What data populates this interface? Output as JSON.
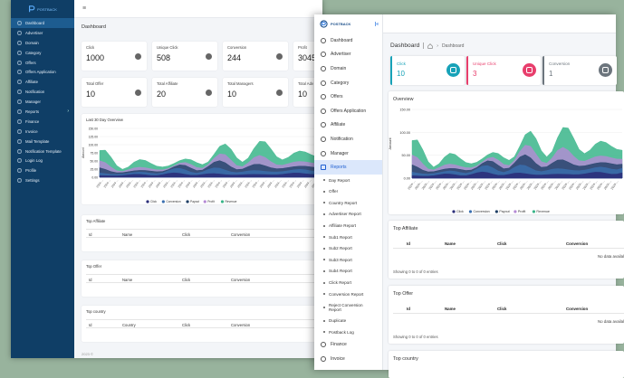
{
  "back": {
    "logo": "POSTBACK",
    "menu_icon": "≡",
    "page_title": "Dashboard",
    "sidebar": [
      {
        "label": "Dashboard",
        "icon": "home-icon",
        "active": true
      },
      {
        "label": "Advertiser",
        "icon": "user-icon"
      },
      {
        "label": "Domain",
        "icon": "globe-icon"
      },
      {
        "label": "Category",
        "icon": "folder-icon"
      },
      {
        "label": "Offers",
        "icon": "tag-icon"
      },
      {
        "label": "Offers Application",
        "icon": "doc-icon"
      },
      {
        "label": "Affiliate",
        "icon": "users-icon"
      },
      {
        "label": "Notification",
        "icon": "bell-icon"
      },
      {
        "label": "Manager",
        "icon": "user-icon"
      },
      {
        "label": "Reports",
        "icon": "chart-icon",
        "chevron": "›"
      },
      {
        "label": "Finance",
        "icon": "money-icon"
      },
      {
        "label": "Invoice",
        "icon": "doc-icon"
      },
      {
        "label": "Mail Template",
        "icon": "mail-icon"
      },
      {
        "label": "Notification Template",
        "icon": "bell-icon"
      },
      {
        "label": "Login Log",
        "icon": "log-icon"
      },
      {
        "label": "Profile",
        "icon": "user-icon"
      },
      {
        "label": "Settings",
        "icon": "gear-icon"
      }
    ],
    "stats": [
      {
        "label": "Click",
        "value": "1000",
        "icon": "hand-icon"
      },
      {
        "label": "Unique Click",
        "value": "508",
        "icon": "pointer-icon"
      },
      {
        "label": "Conversion",
        "value": "244",
        "icon": "check-icon"
      },
      {
        "label": "Profit",
        "value": "3045",
        "icon": "money-icon"
      },
      {
        "label": "Total Offer",
        "value": "10",
        "icon": "tag-icon"
      },
      {
        "label": "Total Affiliate",
        "value": "20",
        "icon": "user-icon"
      },
      {
        "label": "Total Managers",
        "value": "10",
        "icon": "user-icon"
      },
      {
        "label": "Total Adv",
        "value": "10",
        "icon": "user-icon"
      }
    ],
    "chart_title": "Last 30 Day Overview",
    "tables": [
      {
        "title": "Top Affiliate",
        "columns": [
          "Id",
          "Name",
          "Click",
          "Conversion"
        ]
      },
      {
        "title": "Top Offer",
        "columns": [
          "Id",
          "Name",
          "Click",
          "Conversion"
        ]
      },
      {
        "title": "Top country",
        "columns": [
          "Id",
          "Country",
          "Click",
          "Conversion"
        ]
      }
    ],
    "footer": "2023 ©"
  },
  "front": {
    "logo": "POSTBACK",
    "collapse_icon": "|«",
    "page_title": "Dashboard",
    "breadcrumb": "Dashboard",
    "sidebar": [
      {
        "label": "Dashboard",
        "icon": "home-icon"
      },
      {
        "label": "Advertiser",
        "icon": "user-icon"
      },
      {
        "label": "Domain",
        "icon": "globe-icon"
      },
      {
        "label": "Category",
        "icon": "folder-icon"
      },
      {
        "label": "Offers",
        "icon": "tag-icon"
      },
      {
        "label": "Offers Application",
        "icon": "doc-icon"
      },
      {
        "label": "Affiliate",
        "icon": "users-icon"
      },
      {
        "label": "Notification",
        "icon": "bell-icon"
      },
      {
        "label": "Manager",
        "icon": "user-icon"
      },
      {
        "label": "Reports",
        "icon": "chart-icon",
        "active": true
      }
    ],
    "report_items": [
      "Day Report",
      "Offer",
      "Country Report",
      "Advertiser Report",
      "Affiliate Report",
      "Sub1 Report",
      "Sub2 Report",
      "Sub3 Report",
      "Sub4 Report",
      "Click Report",
      "Conversion Report",
      "Reject Conversion Report",
      "Duplicate",
      "Postback Log"
    ],
    "sidebar_bottom": [
      {
        "label": "Finance",
        "icon": "money-icon"
      },
      {
        "label": "Invoice",
        "icon": "doc-icon"
      }
    ],
    "stats": [
      {
        "label": "Click",
        "value": "10",
        "color": "#17a2b8",
        "icon": "hand-icon"
      },
      {
        "label": "Unique Click",
        "value": "3",
        "color": "#e83e6c",
        "icon": "pointer-icon"
      },
      {
        "label": "Conversion",
        "value": "1",
        "color": "#6c757d",
        "icon": "check-icon"
      }
    ],
    "overview_title": "Overview",
    "tables": [
      {
        "title": "Top Affiliate",
        "columns": [
          "Id",
          "Name",
          "Click",
          "Conversion"
        ],
        "empty": "No data availal",
        "info": "Showing 0 to 0 of 0 entries"
      },
      {
        "title": "Top Offer",
        "columns": [
          "Id",
          "Name",
          "Click",
          "Conversion"
        ],
        "empty": "No data availal",
        "info": "Showing 0 to 0 of 0 entries"
      },
      {
        "title": "Top country"
      }
    ]
  },
  "chart_data": [
    {
      "type": "area",
      "title": "Last 30 Day Overview",
      "ylabel": "Amount",
      "ylim": [
        0,
        150
      ],
      "yticks": [
        "150.00",
        "125.00",
        "100.00",
        "75.00",
        "50.00",
        "25.00",
        "0.00"
      ],
      "xtick_prefix": "2024-",
      "series": [
        {
          "name": "Click",
          "color": "#2b2f7a"
        },
        {
          "name": "Conversion",
          "color": "#3a6fb0"
        },
        {
          "name": "Payout",
          "color": "#1f3f66"
        },
        {
          "name": "Profit",
          "color": "#b58ad6"
        },
        {
          "name": "Revenue",
          "color": "#3ab58a"
        }
      ]
    },
    {
      "type": "area",
      "title": "Overview",
      "ylabel": "Amount",
      "ylim": [
        0,
        150
      ],
      "yticks": [
        "150.00",
        "100.00",
        "50.00",
        "0.00"
      ],
      "xtick_prefix": "2024-",
      "series": [
        {
          "name": "Click",
          "color": "#2b2f7a"
        },
        {
          "name": "Conversion",
          "color": "#3a6fb0"
        },
        {
          "name": "Payout",
          "color": "#1f3f66"
        },
        {
          "name": "Profit",
          "color": "#b58ad6"
        },
        {
          "name": "Revenue",
          "color": "#3ab58a"
        }
      ]
    }
  ]
}
